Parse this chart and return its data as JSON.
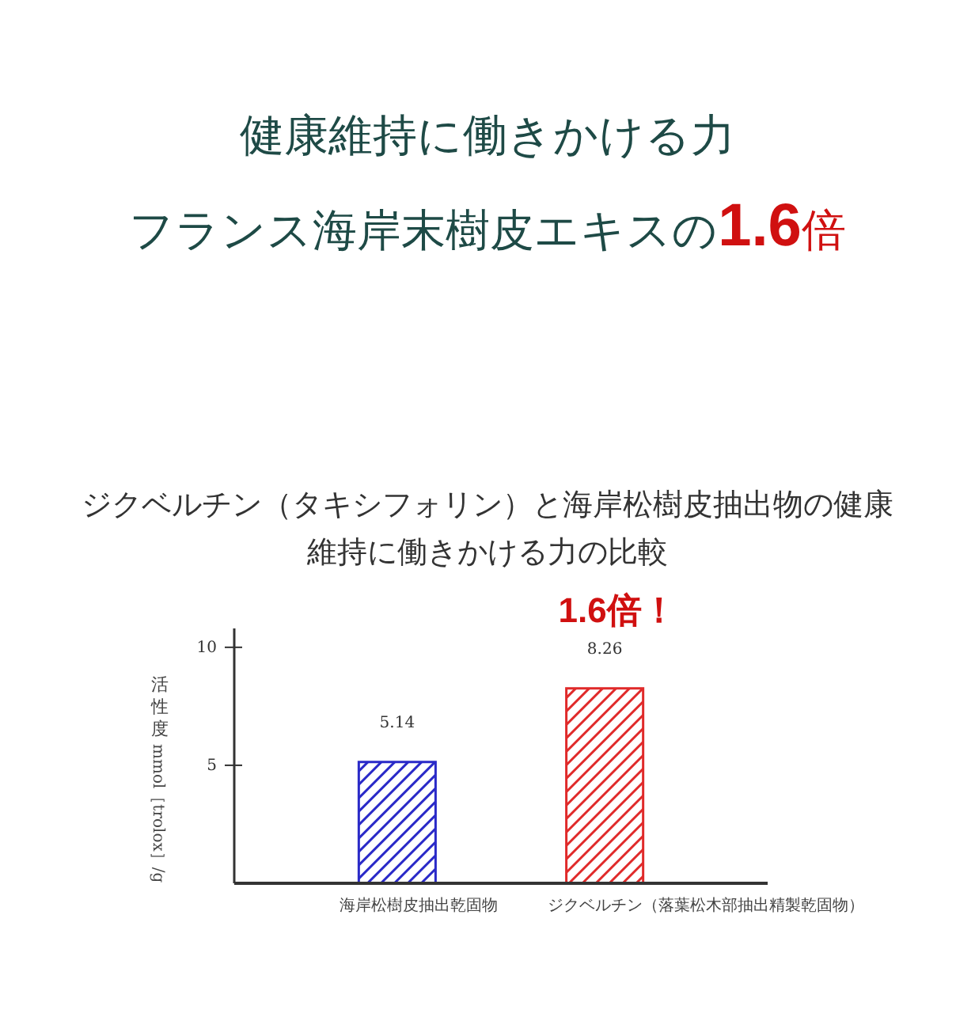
{
  "chart_data": {
    "type": "bar",
    "title": "ジクベルチン（タキシフォリン）と海岸松樹皮抽出物の健康維持に働きかける力の比較",
    "ylabel": "活性度 mmol［trolox］/g",
    "categories": [
      "海岸松樹皮抽出乾固物",
      "ジクベルチン（落葉松木部抽出精製乾固物）"
    ],
    "values": [
      5.14,
      8.26
    ],
    "colors": [
      "#2a2ac8",
      "#e02a2a"
    ],
    "data_labels": true,
    "ylim": [
      0,
      10.8
    ],
    "yticks": [
      5,
      10
    ],
    "grid": false,
    "annotations": [
      "健康維持に働きかける力",
      "フランス海岸末樹皮エキスの1.6倍",
      "1.6倍！"
    ]
  }
}
